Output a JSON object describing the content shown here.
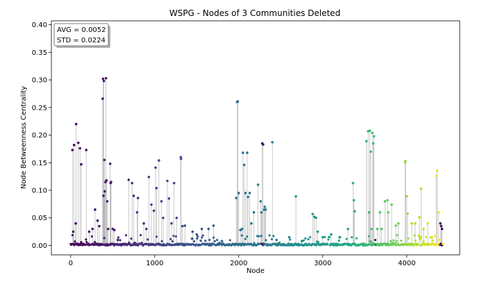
{
  "chart_data": {
    "type": "scatter",
    "title": "WSPG - Nodes of 3 Communities Deleted",
    "xlabel": "Node",
    "ylabel": "Node Betweenness Centrality",
    "xlim": [
      -230,
      4630
    ],
    "ylim": [
      -0.017,
      0.407
    ],
    "xticks": [
      0,
      1000,
      2000,
      3000,
      4000
    ],
    "yticks": [
      0.0,
      0.05,
      0.1,
      0.15,
      0.2,
      0.25,
      0.3,
      0.35,
      0.4
    ],
    "xtick_labels": [
      "0",
      "1000",
      "2000",
      "3000",
      "4000"
    ],
    "ytick_labels": [
      "0.00",
      "0.05",
      "0.10",
      "0.15",
      "0.20",
      "0.25",
      "0.30",
      "0.35",
      "0.40"
    ],
    "grid": false,
    "stems": true,
    "colormap": "viridis",
    "node_range": [
      0,
      4430
    ],
    "stats": {
      "avg_label": "AVG = 0.0052",
      "std_label": "STD = 0.0224"
    },
    "highlighted_points": [
      {
        "x": 20,
        "y": 0.173
      },
      {
        "x": 40,
        "y": 0.182
      },
      {
        "x": 65,
        "y": 0.22
      },
      {
        "x": 90,
        "y": 0.186
      },
      {
        "x": 110,
        "y": 0.176
      },
      {
        "x": 125,
        "y": 0.147
      },
      {
        "x": 185,
        "y": 0.173
      },
      {
        "x": 30,
        "y": 0.025
      },
      {
        "x": 60,
        "y": 0.04
      },
      {
        "x": 220,
        "y": 0.025
      },
      {
        "x": 260,
        "y": 0.03
      },
      {
        "x": 290,
        "y": 0.065
      },
      {
        "x": 320,
        "y": 0.045
      },
      {
        "x": 340,
        "y": 0.035
      },
      {
        "x": 380,
        "y": 0.266
      },
      {
        "x": 385,
        "y": 0.302
      },
      {
        "x": 395,
        "y": 0.298
      },
      {
        "x": 420,
        "y": 0.303
      },
      {
        "x": 400,
        "y": 0.155
      },
      {
        "x": 415,
        "y": 0.115
      },
      {
        "x": 425,
        "y": 0.118
      },
      {
        "x": 405,
        "y": 0.098
      },
      {
        "x": 390,
        "y": 0.09
      },
      {
        "x": 435,
        "y": 0.08
      },
      {
        "x": 445,
        "y": 0.03
      },
      {
        "x": 470,
        "y": 0.148
      },
      {
        "x": 475,
        "y": 0.113
      },
      {
        "x": 480,
        "y": 0.115
      },
      {
        "x": 500,
        "y": 0.03
      },
      {
        "x": 520,
        "y": 0.028
      },
      {
        "x": 560,
        "y": 0.01
      },
      {
        "x": 690,
        "y": 0.119
      },
      {
        "x": 730,
        "y": 0.113
      },
      {
        "x": 750,
        "y": 0.09
      },
      {
        "x": 800,
        "y": 0.086
      },
      {
        "x": 790,
        "y": 0.06
      },
      {
        "x": 870,
        "y": 0.04
      },
      {
        "x": 900,
        "y": 0.03
      },
      {
        "x": 930,
        "y": 0.124
      },
      {
        "x": 960,
        "y": 0.074
      },
      {
        "x": 990,
        "y": 0.063
      },
      {
        "x": 1010,
        "y": 0.141
      },
      {
        "x": 1020,
        "y": 0.104
      },
      {
        "x": 1050,
        "y": 0.154
      },
      {
        "x": 1080,
        "y": 0.08
      },
      {
        "x": 1100,
        "y": 0.05
      },
      {
        "x": 1150,
        "y": 0.117
      },
      {
        "x": 1170,
        "y": 0.085
      },
      {
        "x": 1200,
        "y": 0.04
      },
      {
        "x": 1230,
        "y": 0.113
      },
      {
        "x": 1260,
        "y": 0.05
      },
      {
        "x": 1310,
        "y": 0.16
      },
      {
        "x": 1313,
        "y": 0.157
      },
      {
        "x": 1330,
        "y": 0.035
      },
      {
        "x": 1360,
        "y": 0.036
      },
      {
        "x": 1450,
        "y": 0.025
      },
      {
        "x": 1500,
        "y": 0.02
      },
      {
        "x": 1560,
        "y": 0.03
      },
      {
        "x": 1640,
        "y": 0.03
      },
      {
        "x": 1700,
        "y": 0.036
      },
      {
        "x": 1800,
        "y": 0.008
      },
      {
        "x": 1970,
        "y": 0.086
      },
      {
        "x": 1980,
        "y": 0.26
      },
      {
        "x": 1990,
        "y": 0.261
      },
      {
        "x": 2000,
        "y": 0.095
      },
      {
        "x": 2020,
        "y": 0.028
      },
      {
        "x": 2040,
        "y": 0.03
      },
      {
        "x": 2050,
        "y": 0.168
      },
      {
        "x": 2065,
        "y": 0.146
      },
      {
        "x": 2080,
        "y": 0.095
      },
      {
        "x": 2100,
        "y": 0.168
      },
      {
        "x": 2110,
        "y": 0.088
      },
      {
        "x": 2130,
        "y": 0.095
      },
      {
        "x": 2150,
        "y": 0.04
      },
      {
        "x": 2180,
        "y": 0.06
      },
      {
        "x": 2230,
        "y": 0.11
      },
      {
        "x": 2260,
        "y": 0.08
      },
      {
        "x": 2270,
        "y": 0.06
      },
      {
        "x": 2280,
        "y": 0.185
      },
      {
        "x": 2290,
        "y": 0.183
      },
      {
        "x": 2300,
        "y": 0.065
      },
      {
        "x": 2310,
        "y": 0.07
      },
      {
        "x": 2320,
        "y": 0.065
      },
      {
        "x": 2400,
        "y": 0.187
      },
      {
        "x": 2450,
        "y": 0.01
      },
      {
        "x": 2600,
        "y": 0.015
      },
      {
        "x": 2680,
        "y": 0.089
      },
      {
        "x": 2750,
        "y": 0.008
      },
      {
        "x": 2880,
        "y": 0.057
      },
      {
        "x": 2900,
        "y": 0.052
      },
      {
        "x": 2920,
        "y": 0.05
      },
      {
        "x": 2940,
        "y": 0.025
      },
      {
        "x": 3000,
        "y": 0.015
      },
      {
        "x": 3100,
        "y": 0.02
      },
      {
        "x": 3200,
        "y": 0.015
      },
      {
        "x": 3300,
        "y": 0.03
      },
      {
        "x": 3360,
        "y": 0.113
      },
      {
        "x": 3370,
        "y": 0.082
      },
      {
        "x": 3380,
        "y": 0.062
      },
      {
        "x": 3520,
        "y": 0.189
      },
      {
        "x": 3540,
        "y": 0.207
      },
      {
        "x": 3560,
        "y": 0.208
      },
      {
        "x": 3570,
        "y": 0.17
      },
      {
        "x": 3590,
        "y": 0.204
      },
      {
        "x": 3600,
        "y": 0.185
      },
      {
        "x": 3610,
        "y": 0.198
      },
      {
        "x": 3550,
        "y": 0.06
      },
      {
        "x": 3580,
        "y": 0.03
      },
      {
        "x": 3650,
        "y": 0.03
      },
      {
        "x": 3680,
        "y": 0.06
      },
      {
        "x": 3700,
        "y": 0.03
      },
      {
        "x": 3740,
        "y": 0.08
      },
      {
        "x": 3770,
        "y": 0.082
      },
      {
        "x": 3780,
        "y": 0.06
      },
      {
        "x": 3820,
        "y": 0.074
      },
      {
        "x": 3870,
        "y": 0.036
      },
      {
        "x": 3900,
        "y": 0.04
      },
      {
        "x": 3980,
        "y": 0.151
      },
      {
        "x": 3985,
        "y": 0.153
      },
      {
        "x": 4000,
        "y": 0.089
      },
      {
        "x": 4010,
        "y": 0.058
      },
      {
        "x": 4060,
        "y": 0.04
      },
      {
        "x": 4100,
        "y": 0.04
      },
      {
        "x": 4150,
        "y": 0.051
      },
      {
        "x": 4170,
        "y": 0.103
      },
      {
        "x": 4200,
        "y": 0.03
      },
      {
        "x": 4250,
        "y": 0.04
      },
      {
        "x": 4300,
        "y": 0.015
      },
      {
        "x": 4350,
        "y": 0.126
      },
      {
        "x": 4360,
        "y": 0.136
      },
      {
        "x": 4380,
        "y": 0.06
      },
      {
        "x": 4400,
        "y": 0.04
      },
      {
        "x": 4410,
        "y": 0.035
      },
      {
        "x": 4420,
        "y": 0.03
      },
      {
        "x": 4430,
        "y": 0.003
      }
    ]
  }
}
